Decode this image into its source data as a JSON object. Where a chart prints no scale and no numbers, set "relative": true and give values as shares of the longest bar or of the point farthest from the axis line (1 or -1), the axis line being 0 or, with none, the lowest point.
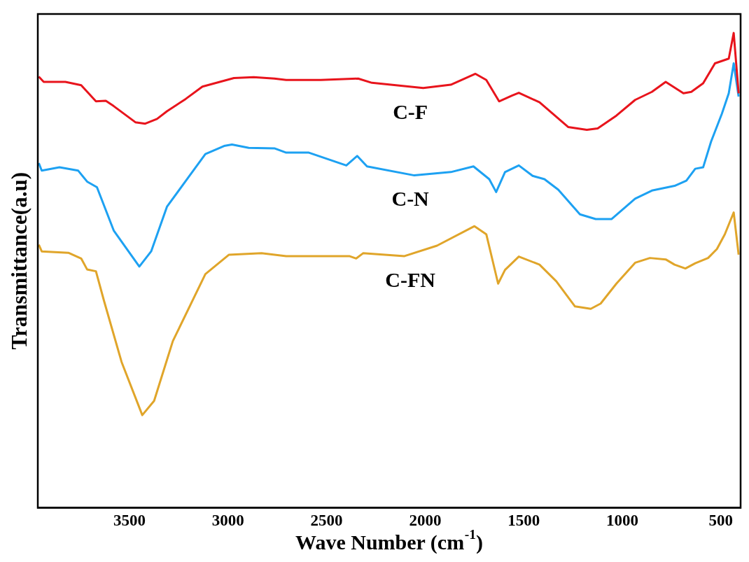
{
  "chart_data": {
    "type": "line",
    "xlabel": "Wave Number (cm$^{-1}$)",
    "ylabel": "Transmittance(a.u)",
    "relative": true,
    "xlim": [
      3965,
      400
    ],
    "xticks": [
      3500,
      3000,
      2500,
      2000,
      1500,
      1000,
      500
    ],
    "grid": false,
    "legend": false,
    "marker": "none",
    "line_style": "solid",
    "series": [
      {
        "name": "C-F",
        "color": "#e8141c",
        "x": [
          3960,
          3935,
          3825,
          3745,
          3670,
          3620,
          3580,
          3470,
          3420,
          3360,
          3310,
          3215,
          3130,
          2970,
          2870,
          2765,
          2705,
          2530,
          2340,
          2270,
          2010,
          1870,
          1745,
          1690,
          1625,
          1560,
          1525,
          1420,
          1275,
          1180,
          1125,
          1030,
          935,
          850,
          780,
          690,
          650,
          590,
          530,
          460,
          435,
          410
        ],
        "values": [
          0.908,
          0.897,
          0.897,
          0.89,
          0.856,
          0.857,
          0.846,
          0.812,
          0.809,
          0.819,
          0.835,
          0.861,
          0.887,
          0.905,
          0.907,
          0.904,
          0.901,
          0.901,
          0.904,
          0.895,
          0.884,
          0.891,
          0.914,
          0.901,
          0.856,
          0.868,
          0.874,
          0.854,
          0.802,
          0.796,
          0.799,
          0.826,
          0.859,
          0.876,
          0.897,
          0.873,
          0.876,
          0.894,
          0.936,
          0.946,
          1,
          0.873
        ]
      },
      {
        "name": "C-N",
        "color": "#1da1f2",
        "x": [
          3960,
          3945,
          3855,
          3760,
          3715,
          3665,
          3580,
          3450,
          3390,
          3310,
          3115,
          3020,
          2980,
          2895,
          2765,
          2705,
          2590,
          2400,
          2345,
          2295,
          2055,
          1870,
          1755,
          1675,
          1640,
          1595,
          1525,
          1455,
          1395,
          1325,
          1215,
          1135,
          1055,
          935,
          850,
          735,
          675,
          630,
          590,
          550,
          495,
          460,
          435,
          410
        ],
        "values": [
          0.726,
          0.71,
          0.717,
          0.71,
          0.687,
          0.675,
          0.584,
          0.508,
          0.54,
          0.634,
          0.745,
          0.762,
          0.765,
          0.758,
          0.757,
          0.748,
          0.748,
          0.721,
          0.741,
          0.719,
          0.7,
          0.707,
          0.719,
          0.692,
          0.665,
          0.707,
          0.721,
          0.699,
          0.692,
          0.67,
          0.618,
          0.608,
          0.608,
          0.651,
          0.668,
          0.678,
          0.689,
          0.714,
          0.717,
          0.771,
          0.83,
          0.873,
          0.936,
          0.866
        ]
      },
      {
        "name": "C-FN",
        "color": "#e0a52a",
        "x": [
          3960,
          3945,
          3810,
          3745,
          3715,
          3670,
          3630,
          3540,
          3435,
          3375,
          3280,
          3115,
          2995,
          2830,
          2705,
          2385,
          2350,
          2315,
          2105,
          1940,
          1750,
          1690,
          1630,
          1595,
          1525,
          1420,
          1335,
          1240,
          1160,
          1110,
          1030,
          935,
          860,
          780,
          735,
          680,
          630,
          565,
          520,
          480,
          435,
          410
        ],
        "values": [
          0.554,
          0.54,
          0.537,
          0.525,
          0.502,
          0.498,
          0.437,
          0.307,
          0.195,
          0.225,
          0.351,
          0.492,
          0.533,
          0.536,
          0.53,
          0.53,
          0.525,
          0.536,
          0.53,
          0.552,
          0.593,
          0.576,
          0.472,
          0.501,
          0.529,
          0.512,
          0.477,
          0.424,
          0.419,
          0.43,
          0.472,
          0.516,
          0.526,
          0.523,
          0.512,
          0.504,
          0.515,
          0.526,
          0.545,
          0.576,
          0.622,
          0.533
        ]
      }
    ]
  }
}
